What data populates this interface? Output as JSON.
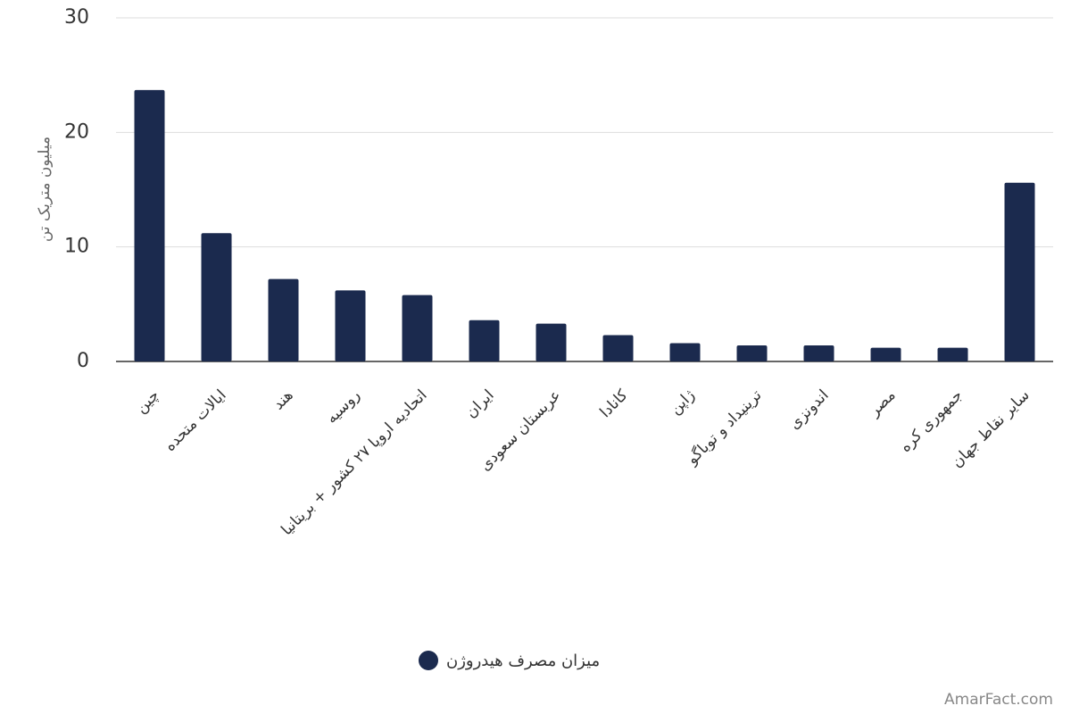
{
  "chart_data": {
    "type": "bar",
    "y_label": "میلیون متریک تن",
    "categories": [
      "چین",
      "ایالات متحده",
      "هند",
      "روسیه",
      "اتحادیه اروپا ۲۷ کشور + بریتانیا",
      "ایران",
      "عربستان سعودی",
      "کانادا",
      "ژاپن",
      "ترینیداد و توباگو",
      "اندونزی",
      "مصر",
      "جمهوری کره",
      "سایر نقاط جهان"
    ],
    "series": [
      {
        "name": "میزان مصرف هیدروژن",
        "color": "#1b2a4e",
        "values": [
          23.7,
          11.2,
          7.2,
          6.2,
          5.8,
          3.6,
          3.3,
          2.3,
          1.6,
          1.4,
          1.4,
          1.2,
          1.2,
          15.6
        ]
      }
    ],
    "ylim": [
      0,
      30
    ],
    "yticks": [
      0,
      10,
      20,
      30
    ],
    "grid": true,
    "watermark": "AmarFact.com"
  }
}
